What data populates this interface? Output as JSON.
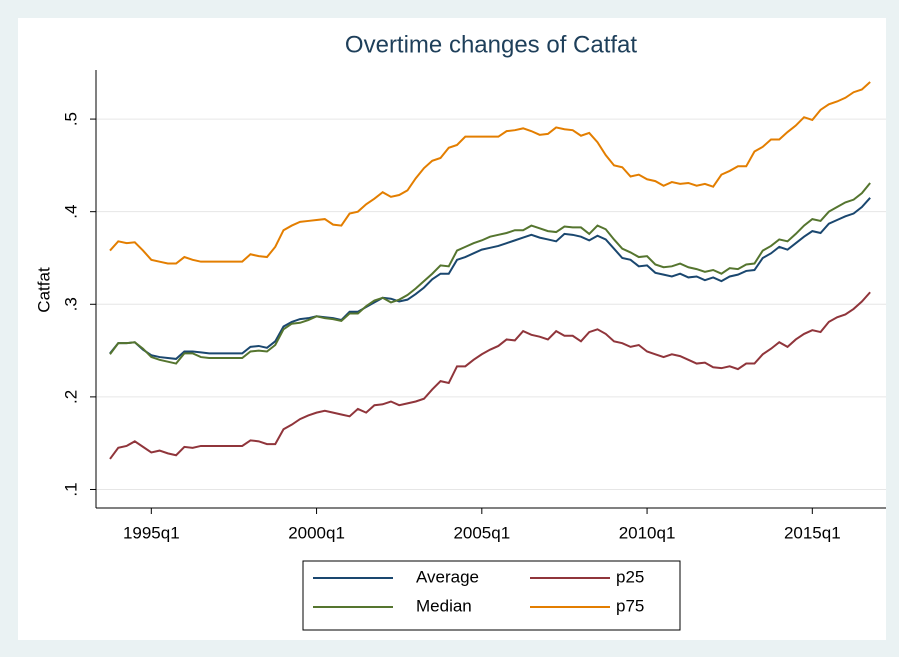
{
  "chart_data": {
    "type": "line",
    "title": "Overtime changes of Catfat",
    "y_label": "Catfat",
    "x": [
      "1993q4",
      "1994q1",
      "1994q2",
      "1994q3",
      "1994q4",
      "1995q1",
      "1995q2",
      "1995q3",
      "1995q4",
      "1996q1",
      "1996q2",
      "1996q3",
      "1996q4",
      "1997q1",
      "1997q2",
      "1997q3",
      "1997q4",
      "1998q1",
      "1998q2",
      "1998q3",
      "1998q4",
      "1999q1",
      "1999q2",
      "1999q3",
      "1999q4",
      "2000q1",
      "2000q2",
      "2000q3",
      "2000q4",
      "2001q1",
      "2001q2",
      "2001q3",
      "2001q4",
      "2002q1",
      "2002q2",
      "2002q3",
      "2002q4",
      "2003q1",
      "2003q2",
      "2003q3",
      "2003q4",
      "2004q1",
      "2004q2",
      "2004q3",
      "2004q4",
      "2005q1",
      "2005q2",
      "2005q3",
      "2005q4",
      "2006q1",
      "2006q2",
      "2006q3",
      "2006q4",
      "2007q1",
      "2007q2",
      "2007q3",
      "2007q4",
      "2008q1",
      "2008q2",
      "2008q3",
      "2008q4",
      "2009q1",
      "2009q2",
      "2009q3",
      "2009q4",
      "2010q1",
      "2010q2",
      "2010q3",
      "2010q4",
      "2011q1",
      "2011q2",
      "2011q3",
      "2011q4",
      "2012q1",
      "2012q2",
      "2012q3",
      "2012q4",
      "2013q1",
      "2013q2",
      "2013q3",
      "2013q4",
      "2014q1",
      "2014q2",
      "2014q3",
      "2014q4",
      "2015q1",
      "2015q2",
      "2015q3",
      "2015q4",
      "2016q1",
      "2016q2",
      "2016q3",
      "2016q4"
    ],
    "series": [
      {
        "name": "Average",
        "color": "#1a476f",
        "values": [
          0.247,
          0.258,
          0.258,
          0.259,
          0.251,
          0.245,
          0.243,
          0.242,
          0.241,
          0.249,
          0.249,
          0.248,
          0.247,
          0.247,
          0.247,
          0.247,
          0.247,
          0.254,
          0.255,
          0.253,
          0.26,
          0.276,
          0.281,
          0.284,
          0.285,
          0.287,
          0.286,
          0.285,
          0.283,
          0.292,
          0.292,
          0.297,
          0.302,
          0.307,
          0.306,
          0.303,
          0.305,
          0.311,
          0.318,
          0.327,
          0.333,
          0.333,
          0.348,
          0.351,
          0.355,
          0.359,
          0.361,
          0.363,
          0.366,
          0.369,
          0.372,
          0.375,
          0.372,
          0.37,
          0.368,
          0.376,
          0.375,
          0.373,
          0.369,
          0.374,
          0.37,
          0.36,
          0.35,
          0.348,
          0.341,
          0.342,
          0.334,
          0.332,
          0.33,
          0.333,
          0.329,
          0.33,
          0.326,
          0.329,
          0.325,
          0.33,
          0.332,
          0.336,
          0.337,
          0.35,
          0.355,
          0.362,
          0.359,
          0.366,
          0.373,
          0.379,
          0.377,
          0.387,
          0.391,
          0.395,
          0.398,
          0.405,
          0.415
        ]
      },
      {
        "name": "Median",
        "color": "#55752f",
        "values": [
          0.246,
          0.258,
          0.258,
          0.259,
          0.252,
          0.243,
          0.24,
          0.238,
          0.236,
          0.247,
          0.247,
          0.243,
          0.242,
          0.242,
          0.242,
          0.242,
          0.242,
          0.249,
          0.25,
          0.249,
          0.256,
          0.273,
          0.279,
          0.28,
          0.283,
          0.287,
          0.285,
          0.284,
          0.282,
          0.29,
          0.29,
          0.298,
          0.304,
          0.307,
          0.302,
          0.305,
          0.31,
          0.317,
          0.325,
          0.333,
          0.342,
          0.341,
          0.358,
          0.362,
          0.366,
          0.369,
          0.373,
          0.375,
          0.377,
          0.38,
          0.38,
          0.385,
          0.382,
          0.379,
          0.378,
          0.384,
          0.383,
          0.383,
          0.376,
          0.385,
          0.381,
          0.37,
          0.36,
          0.356,
          0.351,
          0.352,
          0.343,
          0.34,
          0.341,
          0.344,
          0.34,
          0.338,
          0.335,
          0.337,
          0.333,
          0.339,
          0.338,
          0.343,
          0.344,
          0.358,
          0.363,
          0.37,
          0.368,
          0.376,
          0.385,
          0.392,
          0.39,
          0.4,
          0.405,
          0.41,
          0.413,
          0.42,
          0.431
        ]
      },
      {
        "name": "p25",
        "color": "#90353b",
        "values": [
          0.133,
          0.145,
          0.147,
          0.152,
          0.146,
          0.14,
          0.142,
          0.139,
          0.137,
          0.146,
          0.145,
          0.147,
          0.147,
          0.147,
          0.147,
          0.147,
          0.147,
          0.153,
          0.152,
          0.149,
          0.149,
          0.165,
          0.17,
          0.176,
          0.18,
          0.183,
          0.185,
          0.183,
          0.181,
          0.179,
          0.187,
          0.183,
          0.191,
          0.192,
          0.195,
          0.191,
          0.193,
          0.195,
          0.198,
          0.208,
          0.217,
          0.215,
          0.233,
          0.233,
          0.24,
          0.246,
          0.251,
          0.255,
          0.262,
          0.261,
          0.271,
          0.267,
          0.265,
          0.262,
          0.271,
          0.266,
          0.266,
          0.26,
          0.27,
          0.273,
          0.268,
          0.26,
          0.258,
          0.254,
          0.256,
          0.249,
          0.246,
          0.243,
          0.246,
          0.244,
          0.24,
          0.236,
          0.237,
          0.232,
          0.231,
          0.233,
          0.23,
          0.236,
          0.236,
          0.246,
          0.252,
          0.259,
          0.254,
          0.262,
          0.268,
          0.272,
          0.27,
          0.281,
          0.286,
          0.289,
          0.295,
          0.303,
          0.313
        ]
      },
      {
        "name": "p75",
        "color": "#e37e00",
        "values": [
          0.358,
          0.368,
          0.366,
          0.367,
          0.358,
          0.348,
          0.346,
          0.344,
          0.344,
          0.351,
          0.348,
          0.346,
          0.346,
          0.346,
          0.346,
          0.346,
          0.346,
          0.354,
          0.352,
          0.351,
          0.362,
          0.38,
          0.385,
          0.389,
          0.39,
          0.391,
          0.392,
          0.386,
          0.385,
          0.398,
          0.4,
          0.408,
          0.414,
          0.421,
          0.416,
          0.418,
          0.423,
          0.436,
          0.447,
          0.455,
          0.458,
          0.469,
          0.472,
          0.481,
          0.481,
          0.481,
          0.481,
          0.481,
          0.487,
          0.488,
          0.49,
          0.487,
          0.483,
          0.484,
          0.491,
          0.489,
          0.488,
          0.482,
          0.485,
          0.475,
          0.461,
          0.45,
          0.448,
          0.438,
          0.44,
          0.435,
          0.433,
          0.428,
          0.432,
          0.43,
          0.431,
          0.428,
          0.43,
          0.427,
          0.44,
          0.444,
          0.449,
          0.449,
          0.465,
          0.47,
          0.478,
          0.478,
          0.486,
          0.493,
          0.502,
          0.499,
          0.51,
          0.516,
          0.519,
          0.523,
          0.529,
          0.532,
          0.54
        ]
      }
    ],
    "xticks": [
      "1995q1",
      "2000q1",
      "2005q1",
      "2010q1",
      "2015q1"
    ],
    "ylim": [
      0.08,
      0.553
    ],
    "yticks": [
      {
        "value": 0.1,
        "label": ".1"
      },
      {
        "value": 0.2,
        "label": ".2"
      },
      {
        "value": 0.3,
        "label": ".3"
      },
      {
        "value": 0.4,
        "label": ".4"
      },
      {
        "value": 0.5,
        "label": ".5"
      }
    ],
    "grid": true,
    "legend": "bottom"
  }
}
